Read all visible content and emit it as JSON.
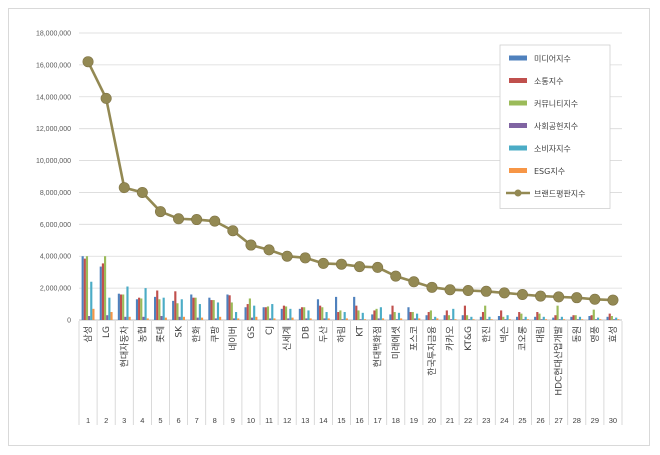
{
  "chart_data": {
    "type": "bar",
    "y_max": 18000000,
    "y_ticks": [
      "0",
      "2,000,000",
      "4,000,000",
      "6,000,000",
      "8,000,000",
      "10,000,000",
      "12,000,000",
      "14,000,000",
      "16,000,000",
      "18,000,000"
    ],
    "tick_values": [
      0,
      2000000,
      4000000,
      6000000,
      8000000,
      10000000,
      12000000,
      14000000,
      16000000,
      18000000
    ],
    "categories": [
      "삼성",
      "LG",
      "현대자동차",
      "농협",
      "롯데",
      "SK",
      "한화",
      "쿠팡",
      "네이버",
      "GS",
      "CJ",
      "신세계",
      "DB",
      "두산",
      "하림",
      "KT",
      "현대백화점",
      "미래에셋",
      "포스코",
      "한국투자금융",
      "카카오",
      "KT&G",
      "한진",
      "넥슨",
      "코오롱",
      "대림",
      "HDC현대산업개발",
      "동원",
      "영풍",
      "효성"
    ],
    "indices": [
      "1",
      "2",
      "3",
      "4",
      "5",
      "6",
      "7",
      "8",
      "9",
      "10",
      "11",
      "12",
      "13",
      "14",
      "15",
      "16",
      "17",
      "18",
      "19",
      "20",
      "21",
      "22",
      "23",
      "24",
      "25",
      "26",
      "27",
      "28",
      "29",
      "30"
    ],
    "series": [
      {
        "name": "미디어지수",
        "color": "#4f81bd",
        "type": "bar",
        "values": [
          4000000,
          3350000,
          1650000,
          1300000,
          1450000,
          1200000,
          1600000,
          1400000,
          1600000,
          800000,
          800000,
          700000,
          700000,
          1300000,
          1450000,
          1450000,
          350000,
          350000,
          800000,
          300000,
          300000,
          300000,
          200000,
          250000,
          200000,
          200000,
          150000,
          200000,
          250000,
          200000
        ]
      },
      {
        "name": "소통지수",
        "color": "#c0504d",
        "type": "bar",
        "values": [
          3850000,
          3550000,
          1600000,
          1400000,
          1850000,
          1800000,
          1400000,
          1250000,
          1550000,
          1000000,
          800000,
          900000,
          800000,
          900000,
          500000,
          900000,
          600000,
          900000,
          500000,
          500000,
          600000,
          900000,
          500000,
          600000,
          500000,
          500000,
          300000,
          300000,
          300000,
          400000
        ]
      },
      {
        "name": "커뮤니티지수",
        "color": "#9bbb59",
        "type": "bar",
        "values": [
          4000000,
          4000000,
          1600000,
          1350000,
          1300000,
          1050000,
          1400000,
          1250000,
          1100000,
          1350000,
          850000,
          850000,
          800000,
          800000,
          600000,
          600000,
          700000,
          500000,
          500000,
          600000,
          300000,
          300000,
          900000,
          200000,
          400000,
          400000,
          900000,
          300000,
          650000,
          250000
        ]
      },
      {
        "name": "사회공헌지수",
        "color": "#8064a2",
        "type": "bar",
        "values": [
          250000,
          300000,
          200000,
          200000,
          250000,
          200000,
          150000,
          100000,
          100000,
          150000,
          100000,
          100000,
          100000,
          100000,
          50000,
          50000,
          100000,
          50000,
          100000,
          50000,
          50000,
          50000,
          50000,
          50000,
          50000,
          50000,
          50000,
          50000,
          50000,
          50000
        ]
      },
      {
        "name": "소비자지수",
        "color": "#4bacc6",
        "type": "bar",
        "values": [
          2400000,
          1400000,
          2100000,
          2000000,
          1400000,
          1300000,
          1000000,
          1100000,
          500000,
          900000,
          1000000,
          700000,
          600000,
          500000,
          500000,
          450000,
          800000,
          450000,
          400000,
          200000,
          700000,
          200000,
          200000,
          300000,
          200000,
          200000,
          200000,
          200000,
          150000,
          150000
        ]
      },
      {
        "name": "ESG지수",
        "color": "#f79646",
        "type": "bar",
        "values": [
          700000,
          500000,
          200000,
          100000,
          150000,
          200000,
          150000,
          200000,
          100000,
          200000,
          100000,
          150000,
          100000,
          100000,
          100000,
          50000,
          100000,
          100000,
          100000,
          100000,
          50000,
          50000,
          50000,
          50000,
          50000,
          50000,
          50000,
          50000,
          50000,
          50000
        ]
      },
      {
        "name": "브랜드평판지수",
        "color": "#938953",
        "type": "line",
        "values": [
          16200000,
          13900000,
          8300000,
          8000000,
          6800000,
          6350000,
          6300000,
          6200000,
          5600000,
          4700000,
          4400000,
          4000000,
          3900000,
          3550000,
          3500000,
          3350000,
          3300000,
          2750000,
          2400000,
          2050000,
          1900000,
          1850000,
          1800000,
          1700000,
          1600000,
          1500000,
          1450000,
          1400000,
          1300000,
          1250000
        ]
      }
    ]
  }
}
